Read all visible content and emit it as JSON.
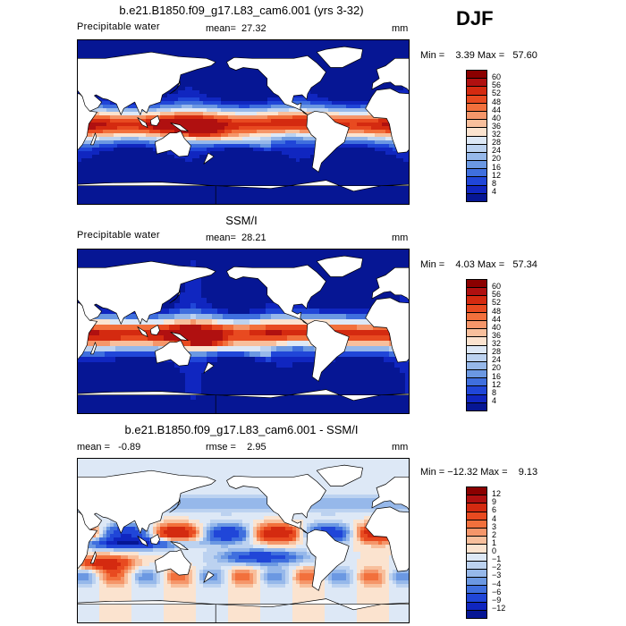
{
  "season": "DJF",
  "panels": [
    {
      "title": "b.e21.B1850.f09_g17.L83_cam6.001 (yrs 3-32)",
      "left_label": "Precipitable water",
      "center_label": "mean=  27.32",
      "right_label": "mm",
      "minmax": "Min =    3.39 Max =   57.60",
      "colorbar": {
        "labels": [
          "60",
          "56",
          "52",
          "48",
          "44",
          "40",
          "36",
          "32",
          "28",
          "24",
          "20",
          "16",
          "12",
          "8",
          "4"
        ],
        "colors": [
          "#8b0000",
          "#b01010",
          "#d42a10",
          "#e84a20",
          "#f2703c",
          "#f5966a",
          "#f8bf9c",
          "#fbe3cf",
          "#dde8f6",
          "#bcd2f0",
          "#96b8ea",
          "#6b98e2",
          "#3f6fde",
          "#2046d8",
          "#1026c0",
          "#061694"
        ]
      },
      "kind": "model"
    },
    {
      "title": "SSM/I",
      "left_label": "Precipitable water",
      "center_label": "mean=  28.21",
      "right_label": "mm",
      "minmax": "Min =    4.03 Max =   57.34",
      "colorbar": {
        "labels": [
          "60",
          "56",
          "52",
          "48",
          "44",
          "40",
          "36",
          "32",
          "28",
          "24",
          "20",
          "16",
          "12",
          "8",
          "4"
        ],
        "colors": [
          "#8b0000",
          "#b01010",
          "#d42a10",
          "#e84a20",
          "#f2703c",
          "#f5966a",
          "#f8bf9c",
          "#fbe3cf",
          "#dde8f6",
          "#bcd2f0",
          "#96b8ea",
          "#6b98e2",
          "#3f6fde",
          "#2046d8",
          "#1026c0",
          "#061694"
        ]
      },
      "kind": "obs"
    },
    {
      "title": "b.e21.B1850.f09_g17.L83_cam6.001 - SSM/I",
      "left_label": "mean =   -0.89",
      "center_label": "rmse =    2.95",
      "right_label": "mm",
      "minmax": "Min = −12.32 Max =    9.13",
      "colorbar": {
        "labels": [
          "12",
          "9",
          "6",
          "4",
          "3",
          "2",
          "1",
          "0",
          "−1",
          "−2",
          "−3",
          "−4",
          "−6",
          "−9",
          "−12"
        ],
        "colors": [
          "#8b0000",
          "#b01010",
          "#d42a10",
          "#e84a20",
          "#f2703c",
          "#f5966a",
          "#f8bf9c",
          "#fbe3cf",
          "#dde8f6",
          "#bcd2f0",
          "#96b8ea",
          "#6b98e2",
          "#3f6fde",
          "#2046d8",
          "#1026c0",
          "#061694"
        ]
      },
      "kind": "diff"
    }
  ]
}
